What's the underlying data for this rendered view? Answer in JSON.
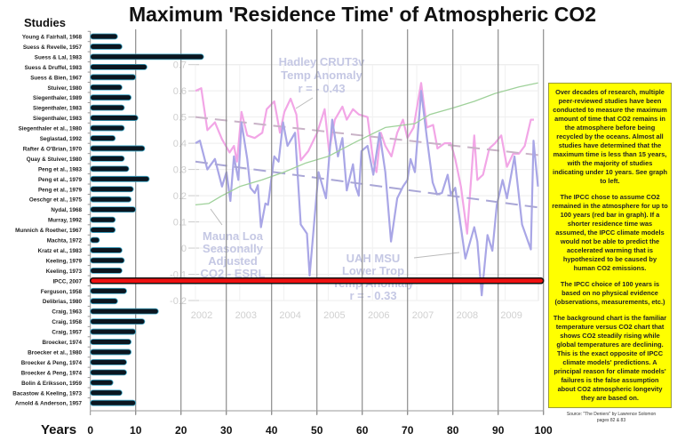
{
  "chart_data": [
    {
      "type": "bar",
      "orientation": "horizontal",
      "title": "Maximum 'Residence Time' of Atmospheric CO2",
      "ylabel": "Studies",
      "xlabel": "Years",
      "xlim": [
        0,
        100
      ],
      "xticks": [
        "0",
        "10",
        "20",
        "30",
        "40",
        "50",
        "60",
        "70",
        "80",
        "90",
        "100"
      ],
      "grid": "vertical",
      "colors": {
        "bar": "#0b1620",
        "bar_edge": "#3fa9c9",
        "highlight": "#ee1111"
      },
      "highlight_category": "IPCC, 2007",
      "categories": [
        "Young & Fairhall, 1968",
        "Suess & Revelle, 1957",
        "Suess & Lal, 1983",
        "Suess & Druffel, 1983",
        "Suess & Bien, 1967",
        "Stuiver, 1980",
        "Siegenthaler, 1989",
        "Siegenthaler, 1983",
        "Siegenthaler, 1983",
        "Siegenthaler et al., 1980",
        "Seglastad, 1992",
        "Rafter & O'Brian, 1970",
        "Quay & Stuiver, 1980",
        "Peng et al., 1983",
        "Peng et al., 1979",
        "Peng et al., 1979",
        "Oeschgr et al., 1975",
        "Nydal, 1968",
        "Murray, 1992",
        "Munnich & Roether, 1967",
        "Machta, 1972",
        "Kratz et al., 1983",
        "Keeling, 1979",
        "Keeling, 1973",
        "IPCC, 2007",
        "Ferguson, 1958",
        "Delibrias, 1980",
        "Craig, 1963",
        "Craig, 1958",
        "Craig, 1957",
        "Broecker, 1974",
        "Broecker et al., 1980",
        "Broecker & Peng, 1974",
        "Broecker & Peng, 1974",
        "Bolin & Eriksson, 1959",
        "Bacastow & Keeling, 1973",
        "Arnold & Anderson, 1957"
      ],
      "values": [
        6,
        7,
        25,
        12.5,
        10,
        7,
        9,
        7.5,
        10.5,
        7.5,
        5.5,
        12,
        7.5,
        8.5,
        13,
        9.5,
        9,
        10,
        5.5,
        5.5,
        2,
        7,
        7.5,
        7,
        100,
        8,
        6,
        15,
        12,
        10,
        9,
        9,
        8,
        8,
        5,
        7,
        10
      ]
    },
    {
      "type": "line",
      "role": "background",
      "xlim": [
        2002,
        2009.75
      ],
      "ylim": [
        -0.2,
        0.7
      ],
      "yticks": [
        "0.7",
        "0.6",
        "0.5",
        "0.4",
        "0.3",
        "0.2",
        "0.1",
        "0",
        "-0.1",
        "-0.2"
      ],
      "xticks": [
        "2002",
        "2003",
        "2004",
        "2005",
        "2006",
        "2007",
        "2008",
        "2009"
      ],
      "grid": "both",
      "annotations": {
        "hadley": [
          "Hadley CRUT3v",
          "Temp Anomaly",
          "r = - 0.43"
        ],
        "mauna": [
          "Mauna Loa",
          "Seasonally",
          "Adjusted",
          "CO2 - ESRL"
        ],
        "uah": [
          "UAH MSU",
          "Lower Trop",
          "Temp Anomaly",
          "r = - 0.33"
        ]
      },
      "series": [
        {
          "key": "hadley",
          "color": "#f2a6e6",
          "x": [
            2002.0,
            2002.13,
            2002.27,
            2002.44,
            2002.6,
            2002.77,
            2002.87,
            2002.94,
            2003.04,
            2003.17,
            2003.34,
            2003.51,
            2003.61,
            2003.78,
            2003.91,
            2004.01,
            2004.15,
            2004.28,
            2004.38,
            2004.55,
            2004.75,
            2004.92,
            2005.02,
            2005.15,
            2005.32,
            2005.42,
            2005.56,
            2005.69,
            2005.89,
            2006.02,
            2006.09,
            2006.19,
            2006.29,
            2006.43,
            2006.56,
            2006.69,
            2006.79,
            2006.93,
            2007.1,
            2007.23,
            2007.37,
            2007.47,
            2007.63,
            2007.77,
            2007.87,
            2008.0,
            2008.14,
            2008.3,
            2008.37,
            2008.5,
            2008.64,
            2008.77,
            2008.91,
            2009.04,
            2009.18,
            2009.31,
            2009.44,
            2009.58,
            2009.65
          ],
          "y": [
            0.6,
            0.61,
            0.45,
            0.48,
            0.415,
            0.365,
            0.39,
            0.33,
            0.52,
            0.43,
            0.42,
            0.44,
            0.53,
            0.56,
            0.44,
            0.52,
            0.57,
            0.51,
            0.335,
            0.37,
            0.44,
            0.53,
            0.37,
            0.49,
            0.54,
            0.49,
            0.53,
            0.51,
            0.5,
            0.33,
            0.29,
            0.44,
            0.39,
            0.35,
            0.44,
            0.49,
            0.42,
            0.46,
            0.63,
            0.46,
            0.47,
            0.38,
            0.4,
            0.4,
            0.34,
            0.235,
            0.055,
            0.43,
            0.26,
            0.28,
            0.38,
            0.4,
            0.43,
            0.31,
            0.36,
            0.36,
            0.39,
            0.49,
            0.49
          ],
          "trend": [
            0.5,
            0.355
          ]
        },
        {
          "key": "uah",
          "color": "#a9a6e6",
          "x": [
            2002.0,
            2002.1,
            2002.27,
            2002.44,
            2002.6,
            2002.7,
            2002.79,
            2002.87,
            2002.97,
            2003.04,
            2003.17,
            2003.24,
            2003.34,
            2003.41,
            2003.48,
            2003.58,
            2003.64,
            2003.78,
            2003.88,
            2003.98,
            2004.08,
            2004.25,
            2004.38,
            2004.52,
            2004.58,
            2004.78,
            2004.95,
            2005.09,
            2005.22,
            2005.32,
            2005.42,
            2005.56,
            2005.62,
            2005.69,
            2005.75,
            2005.89,
            2006.02,
            2006.16,
            2006.29,
            2006.42,
            2006.56,
            2006.69,
            2006.79,
            2006.86,
            2006.96,
            2007.1,
            2007.23,
            2007.36,
            2007.46,
            2007.57,
            2007.7,
            2007.77,
            2007.87,
            2008.1,
            2008.3,
            2008.37,
            2008.47,
            2008.6,
            2008.71,
            2008.81,
            2008.94,
            2009.04,
            2009.21,
            2009.38,
            2009.58,
            2009.64,
            2009.74
          ],
          "y": [
            0.4,
            0.41,
            0.3,
            0.34,
            0.235,
            0.29,
            0.18,
            0.35,
            0.26,
            0.48,
            0.34,
            0.23,
            0.21,
            0.24,
            0.08,
            0.17,
            0.165,
            0.35,
            0.33,
            0.48,
            0.39,
            0.44,
            0.09,
            0.055,
            -0.105,
            0.29,
            0.19,
            0.49,
            0.35,
            0.42,
            0.22,
            0.32,
            0.235,
            0.2,
            0.37,
            0.39,
            0.28,
            0.44,
            0.29,
            0.025,
            0.19,
            0.235,
            0.26,
            0.34,
            0.29,
            0.6,
            0.42,
            0.25,
            0.205,
            0.21,
            0.28,
            0.205,
            0.23,
            -0.04,
            0.08,
            0.025,
            -0.18,
            0.05,
            -0.01,
            0.165,
            0.26,
            0.19,
            0.35,
            0.09,
            -0.005,
            0.41,
            0.235
          ],
          "trend": [
            0.33,
            0.155
          ]
        },
        {
          "key": "mauna",
          "color": "#9fd19a",
          "x": [
            2002.0,
            2002.3,
            2002.6,
            2003.0,
            2003.5,
            2004.0,
            2004.5,
            2005.0,
            2005.62,
            2006.29,
            2006.96,
            2007.3,
            2007.83,
            2008.3,
            2008.77,
            2009.31,
            2009.74
          ],
          "y": [
            0.165,
            0.17,
            0.2,
            0.235,
            0.26,
            0.29,
            0.325,
            0.35,
            0.405,
            0.46,
            0.475,
            0.51,
            0.535,
            0.56,
            0.59,
            0.615,
            0.63
          ]
        }
      ]
    }
  ],
  "note": {
    "paragraphs": [
      "Over decades of research, multiple peer-reviewed studies have been conducted to measure the maximum amount of time that CO2 remains in the atmosphere before being recycled by the oceans. Almost all studies have determined that the maximum time is less than 15 years, with the majority of studies indicating under 10 years. See graph to left.",
      "The IPCC chose to assume CO2 remained in the atmosphere for up to 100 years (red bar in graph). If a shorter residence time was assumed, the IPCC climate models would not be able to predict the accelerated warming that is hypothesized to be caused by human CO2 emissions.",
      "The IPCC choice of 100 years is based on no physical evidence (observations, measurements, etc.)",
      "The background chart is the familiar temperature versus CO2 chart that shows CO2 steadily rising while global temperatures are declining. This is the exact opposite of IPCC climate models' predictions. A principal reason for climate models' failures is the false assumption about CO2 atmospheric longevity they are based on."
    ],
    "background": "#ffff00"
  },
  "source": {
    "line1": "Source: \"The Deniers\" by Lawrence Solomon",
    "line2": "pages 82 & 83"
  }
}
